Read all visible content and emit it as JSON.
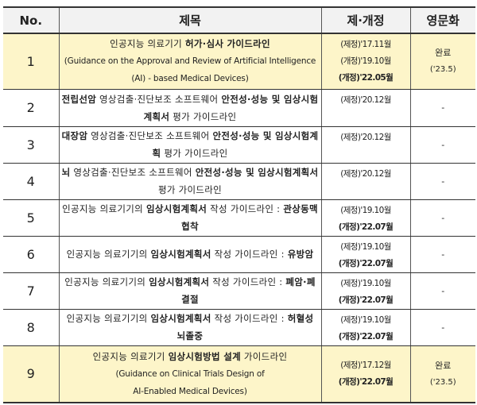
{
  "header": {
    "no": "No.",
    "title": "제목",
    "date": "제·개정",
    "english": "영문화"
  },
  "highlight_color": "#fdf5c9",
  "rows": [
    {
      "no": "1",
      "highlight": true,
      "title": [
        {
          "t": "인공지능 의료기기 ",
          "b": false
        },
        {
          "t": "허가·심사 가이드라인",
          "b": true
        }
      ],
      "english_title": [
        "(Guidance on the Approval and Review of Artificial Intelligence",
        "(AI) - based Medical Devices)"
      ],
      "dates": [
        {
          "t": "(제정)'17.11월",
          "b": false
        },
        {
          "t": "(개정)'19.10월",
          "b": false
        },
        {
          "t": "(개정)'22.05월",
          "b": true
        }
      ],
      "english": "완료",
      "english_date": "('23.5)"
    },
    {
      "no": "2",
      "highlight": false,
      "title": [
        {
          "t": "전립선암",
          "b": true
        },
        {
          "t": " 영상검출·진단보조 소프트웨어 ",
          "b": false
        },
        {
          "t": "안전성·성능 및 임상시험계획서",
          "b": true
        },
        {
          "t": " 평가 가이드라인",
          "b": false
        }
      ],
      "dates": [
        {
          "t": "(제정)'20.12월",
          "b": false
        }
      ],
      "english": "-"
    },
    {
      "no": "3",
      "highlight": false,
      "title": [
        {
          "t": "대장암",
          "b": true
        },
        {
          "t": " 영상검출·진단보조 소프트웨어 ",
          "b": false
        },
        {
          "t": "안전성·성능 및 임상시험계획",
          "b": true
        },
        {
          "t": " 평가 가이드라인",
          "b": false
        }
      ],
      "dates": [
        {
          "t": "(제정)'20.12월",
          "b": false
        }
      ],
      "english": "-"
    },
    {
      "no": "4",
      "highlight": false,
      "title": [
        {
          "t": "뇌",
          "b": true
        },
        {
          "t": " 영상검출·진단보조 소프트웨어 ",
          "b": false
        },
        {
          "t": "안전성·성능 및 임상시험계획서",
          "b": true
        },
        {
          "t": " 평가 가이드라인",
          "b": false
        }
      ],
      "dates": [
        {
          "t": "(제정)'20.12월",
          "b": false
        }
      ],
      "english": "-"
    },
    {
      "no": "5",
      "highlight": false,
      "title": [
        {
          "t": "인공지능 의료기기의 ",
          "b": false
        },
        {
          "t": "임상시험계획서",
          "b": true
        },
        {
          "t": " 작성 가이드라인 : ",
          "b": false
        },
        {
          "t": "관상동맥협착",
          "b": true
        }
      ],
      "dates": [
        {
          "t": "(제정)'19.10월",
          "b": false
        },
        {
          "t": "(개정)'22.07월",
          "b": true
        }
      ],
      "english": "-"
    },
    {
      "no": "6",
      "highlight": false,
      "title": [
        {
          "t": "인공지능 의료기기의 ",
          "b": false
        },
        {
          "t": "임상시험계획서",
          "b": true
        },
        {
          "t": " 작성 가이드라인 : ",
          "b": false
        },
        {
          "t": "유방암",
          "b": true
        }
      ],
      "dates": [
        {
          "t": "(제정)'19.10월",
          "b": false
        },
        {
          "t": "(개정)'22.07월",
          "b": true
        }
      ],
      "english": "-"
    },
    {
      "no": "7",
      "highlight": false,
      "title": [
        {
          "t": "인공지능 의료기기의 ",
          "b": false
        },
        {
          "t": "임상시험계획서",
          "b": true
        },
        {
          "t": " 작성 가이드라인 : ",
          "b": false
        },
        {
          "t": "폐암·폐결절",
          "b": true
        }
      ],
      "dates": [
        {
          "t": "(제정)'19.10월",
          "b": false
        },
        {
          "t": "(개정)'22.07월",
          "b": true
        }
      ],
      "english": "-"
    },
    {
      "no": "8",
      "highlight": false,
      "title": [
        {
          "t": "인공지능 의료기기의 ",
          "b": false
        },
        {
          "t": "임상시험계획서",
          "b": true
        },
        {
          "t": " 작성 가이드라인 : ",
          "b": false
        },
        {
          "t": "허혈성 뇌졸중",
          "b": true
        }
      ],
      "dates": [
        {
          "t": "(제정)'19.10월",
          "b": false
        },
        {
          "t": "(개정)'22.07월",
          "b": true
        }
      ],
      "english": "-"
    },
    {
      "no": "9",
      "highlight": true,
      "title": [
        {
          "t": "인공지능 의료기기 ",
          "b": false
        },
        {
          "t": "임상시험방법 설계",
          "b": true
        },
        {
          "t": " 가이드라인",
          "b": false
        }
      ],
      "english_title": [
        "(Guidance on Clinical Trials Design of",
        "AI-Enabled Medical Devices)"
      ],
      "dates": [
        {
          "t": "(제정)'17.12월",
          "b": false
        },
        {
          "t": "(개정)'22.07월",
          "b": true
        }
      ],
      "english": "완료",
      "english_date": "('23.5)"
    }
  ]
}
